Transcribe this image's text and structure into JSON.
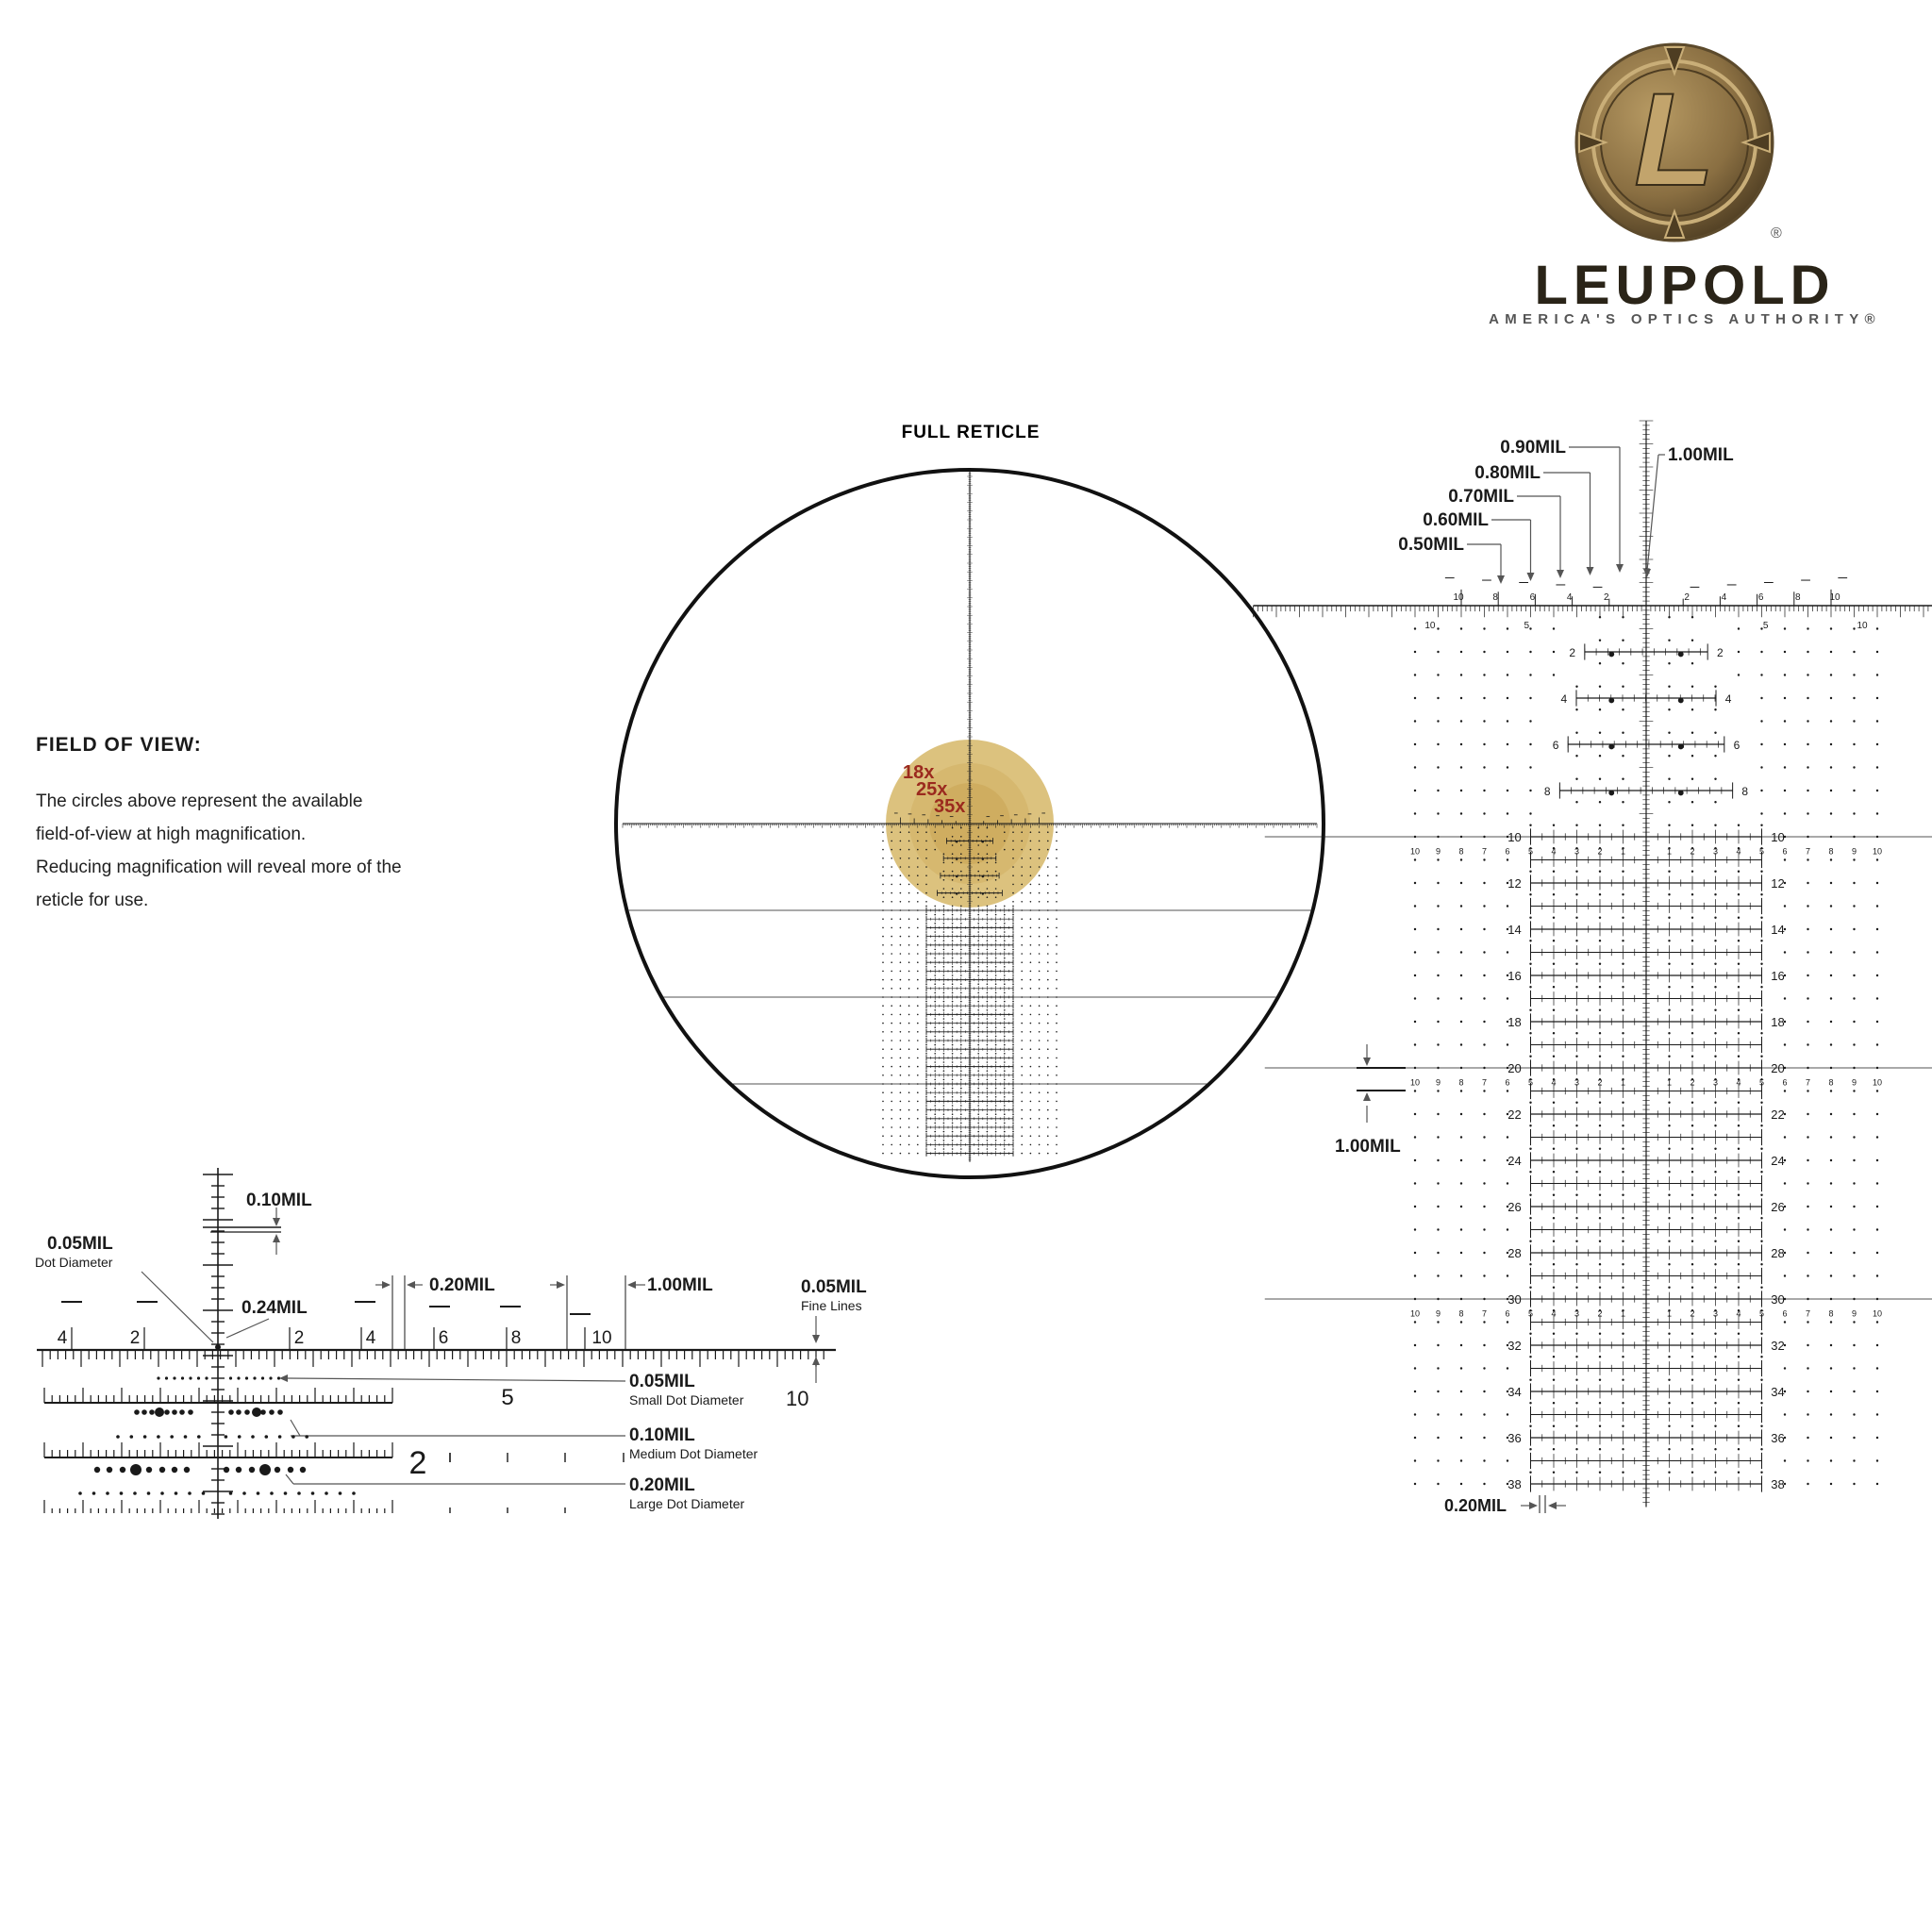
{
  "logo": {
    "monogram": "L",
    "registered": "®",
    "brand": "LEUPOLD",
    "tagline": "AMERICA'S OPTICS AUTHORITY®"
  },
  "full_reticle": {
    "title": "FULL RETICLE",
    "magnifications": [
      "18x",
      "25x",
      "35x"
    ]
  },
  "field_of_view": {
    "heading": "FIELD OF VIEW:",
    "lines": [
      "The circles above represent the available",
      "field-of-view at high magnification.",
      "Reducing magnification will reveal more of the",
      "reticle for use."
    ]
  },
  "detail_left": {
    "scale_labels_left": [
      "4",
      "2"
    ],
    "scale_labels_right": [
      "2",
      "4",
      "6",
      "8",
      "10"
    ],
    "label_010": "0.10MIL",
    "label_005_dot": "0.05MIL",
    "label_005_dot_sub": "Dot Diameter",
    "label_024": "0.24MIL",
    "label_020": "0.20MIL",
    "label_100": "1.00MIL",
    "label_005_fine": "0.05MIL",
    "label_005_fine_sub": "Fine Lines",
    "label_small_dot": "0.05MIL",
    "label_small_dot_sub": "Small Dot Diameter",
    "label_medium_dot": "0.10MIL",
    "label_medium_dot_sub": "Medium Dot Diameter",
    "label_large_dot": "0.20MIL",
    "label_large_dot_sub": "Large Dot Diameter",
    "row_number_5": "5",
    "row_number_10": "10",
    "row_number_2": "2"
  },
  "detail_right": {
    "post_labels": [
      "0.50MIL",
      "0.60MIL",
      "0.70MIL",
      "0.80MIL",
      "0.90MIL"
    ],
    "label_100_top": "1.00MIL",
    "label_100_side": "1.00MIL",
    "label_020_bottom": "0.20MIL",
    "top_scale_labels": [
      "10",
      "8",
      "6",
      "4",
      "2",
      "2",
      "4",
      "6",
      "8",
      "10"
    ],
    "under_scale_labels": [
      "10",
      "5",
      "5",
      "10"
    ],
    "row_labels": [
      "2",
      "4",
      "6",
      "8",
      "10",
      "12",
      "14",
      "16",
      "18",
      "20",
      "22",
      "24",
      "26",
      "28",
      "30",
      "32",
      "34",
      "36",
      "38"
    ],
    "wide_row_labels": [
      "10",
      "9",
      "8",
      "7",
      "6",
      "5",
      "4",
      "3",
      "2",
      "1",
      "1",
      "2",
      "3",
      "4",
      "5",
      "6",
      "7",
      "8",
      "9",
      "10"
    ]
  },
  "colors": {
    "ink": "#1a1a1a",
    "fov_18x": "#dcc27e",
    "fov_25x": "#d5b66c",
    "fov_35x": "#cdaa5c",
    "magnification_text": "#9b2a1e",
    "logo_bronze": "#8a6f42",
    "logo_dark": "#2a2418"
  }
}
